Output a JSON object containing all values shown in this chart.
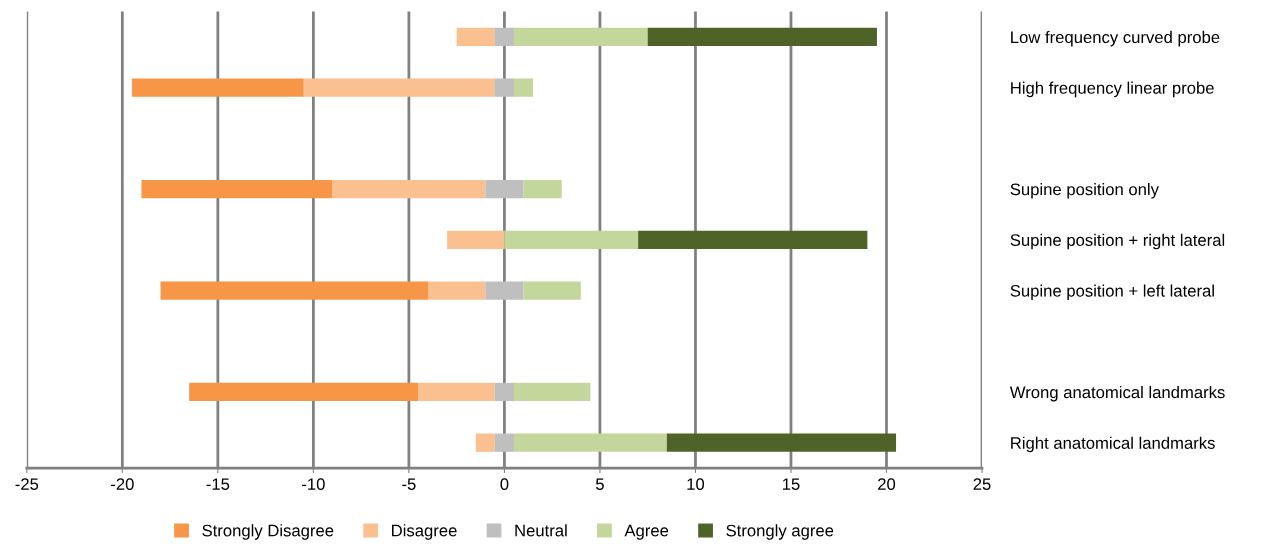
{
  "chart_data": {
    "type": "bar",
    "orientation": "horizontal",
    "categories": [
      "Low frequency curved probe",
      "High frequency linear probe",
      null,
      "Supine position only",
      "Supine position + right lateral",
      "Supine position + left lateral",
      null,
      "Wrong anatomical landmarks",
      "Right anatomical landmarks"
    ],
    "series": [
      {
        "name": "Strongly Disagree",
        "color": "#f79646",
        "values": [
          null,
          9,
          null,
          10,
          null,
          14,
          null,
          12,
          null
        ],
        "base": [
          null,
          -19.5,
          null,
          -19,
          null,
          -18,
          null,
          -16.5,
          null
        ]
      },
      {
        "name": "Disagree",
        "color": "#fac090",
        "values": [
          2,
          10,
          null,
          8,
          3,
          3,
          null,
          4,
          1
        ],
        "base": [
          -2.5,
          -10.5,
          null,
          -9,
          -3,
          -4,
          null,
          -4.5,
          -1.5
        ]
      },
      {
        "name": "Neutral",
        "color": "#bfbfbf",
        "values": [
          1,
          1,
          null,
          2,
          null,
          2,
          null,
          1,
          1
        ],
        "base": [
          -0.5,
          -0.5,
          null,
          -1,
          null,
          -1,
          null,
          -0.5,
          -0.5
        ]
      },
      {
        "name": "Agree",
        "color": "#c3d69b",
        "values": [
          7,
          1,
          null,
          2,
          7,
          3,
          null,
          4,
          8
        ],
        "base": [
          0.5,
          0.5,
          null,
          1,
          0,
          1,
          null,
          0.5,
          0.5
        ]
      },
      {
        "name": "Strongly agree",
        "color": "#4f6228",
        "values": [
          12,
          null,
          null,
          null,
          12,
          null,
          null,
          null,
          12
        ],
        "base": [
          7.5,
          null,
          null,
          null,
          7,
          null,
          null,
          null,
          8.5
        ]
      }
    ],
    "xlim": [
      -25,
      25
    ],
    "xticks": [
      -25,
      -20,
      -15,
      -10,
      -5,
      0,
      5,
      10,
      15,
      20,
      25
    ],
    "grid": "x",
    "legend": "bottom"
  }
}
